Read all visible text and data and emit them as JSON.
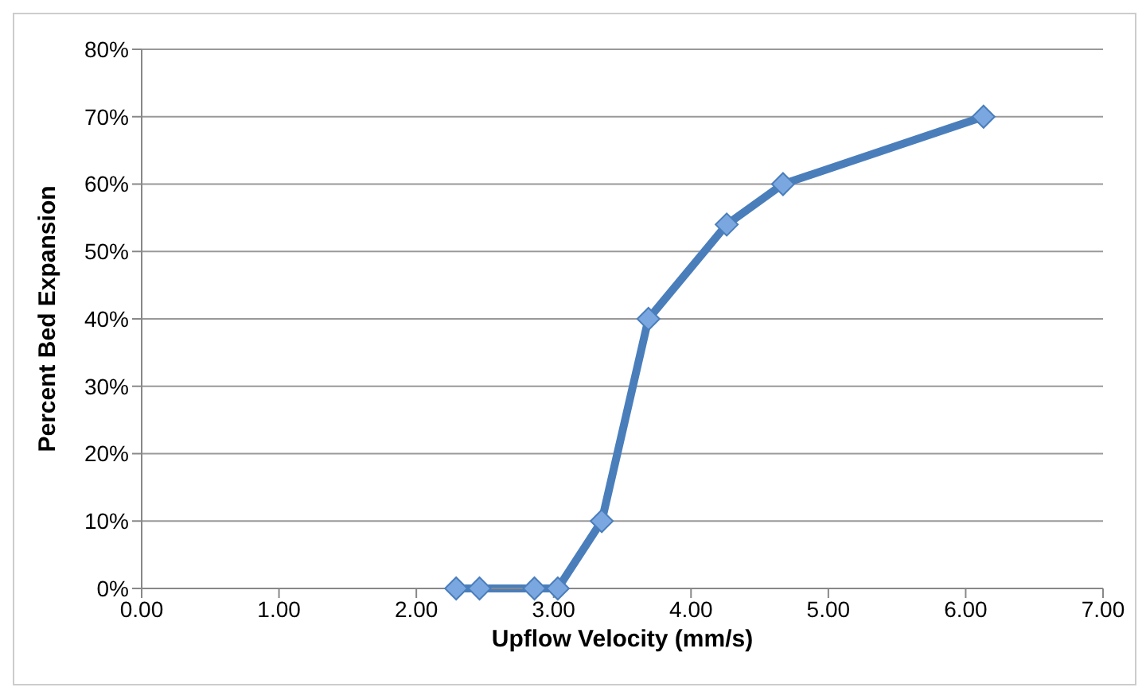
{
  "chart_data": {
    "type": "line",
    "xlabel": "Upflow Velocity (mm/s)",
    "ylabel": "Percent Bed Expansion",
    "x": [
      2.29,
      2.46,
      2.86,
      3.03,
      3.35,
      3.69,
      4.26,
      4.67,
      6.13
    ],
    "series": [
      {
        "color": "#4a7ebb",
        "values": [
          0,
          0,
          0,
          0,
          10,
          40,
          54,
          60,
          70
        ]
      }
    ],
    "xlim": [
      0,
      7
    ],
    "xticks": [
      {
        "value": 0,
        "label": "0.00"
      },
      {
        "value": 1,
        "label": "1.00"
      },
      {
        "value": 2,
        "label": "2.00"
      },
      {
        "value": 3,
        "label": "3.00"
      },
      {
        "value": 4,
        "label": "4.00"
      },
      {
        "value": 5,
        "label": "5.00"
      },
      {
        "value": 6,
        "label": "6.00"
      },
      {
        "value": 7,
        "label": "7.00"
      }
    ],
    "ylim": [
      0,
      80
    ],
    "yticks": [
      {
        "value": 0,
        "label": "0%"
      },
      {
        "value": 10,
        "label": "10%"
      },
      {
        "value": 20,
        "label": "20%"
      },
      {
        "value": 30,
        "label": "30%"
      },
      {
        "value": 40,
        "label": "40%"
      },
      {
        "value": 50,
        "label": "50%"
      },
      {
        "value": 60,
        "label": "60%"
      },
      {
        "value": 70,
        "label": "70%"
      },
      {
        "value": 80,
        "label": "80%"
      }
    ],
    "grid": "y",
    "marker": "diamond",
    "legend": false
  }
}
